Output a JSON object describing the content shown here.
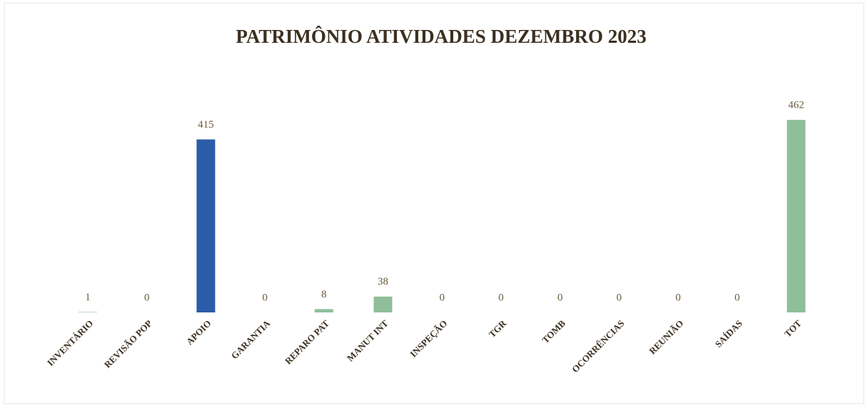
{
  "chart_data": {
    "type": "bar",
    "title": "PATRIMÔNIO ATIVIDADES DEZEMBRO 2023",
    "categories": [
      "INVENTÁRIO",
      "REVISÃO POP",
      "APOIO",
      "GARANTIA",
      "REPARO PAT",
      "MANUT INT",
      "INSPEÇÃO",
      "TGR",
      "TOMB",
      "OCORRÊNCIAS",
      "REUNIÃO",
      "SAÍDAS",
      "TOT"
    ],
    "values": [
      1,
      0,
      415,
      0,
      8,
      38,
      0,
      0,
      0,
      0,
      0,
      0,
      462
    ],
    "colors": [
      "#8fbf9a",
      "#8fbf9a",
      "#2b5ca8",
      "#8fbf9a",
      "#8fbf9a",
      "#8fbf9a",
      "#8fbf9a",
      "#8fbf9a",
      "#8fbf9a",
      "#8fbf9a",
      "#8fbf9a",
      "#8fbf9a",
      "#8fbf9a"
    ]
  }
}
